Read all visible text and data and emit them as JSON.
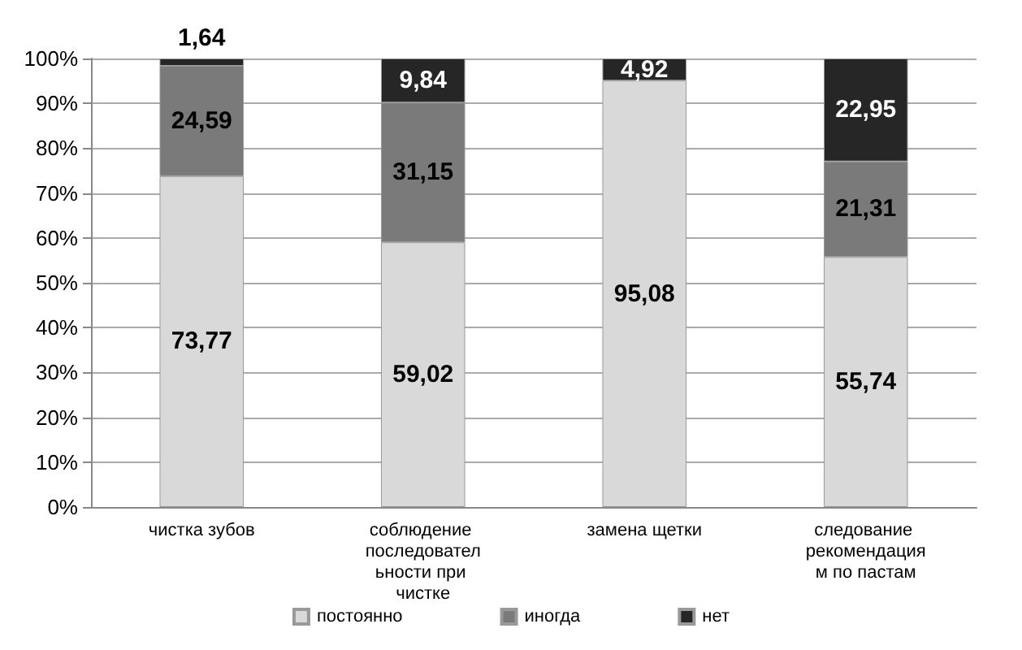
{
  "chart_data": {
    "type": "bar",
    "stacked": true,
    "categories": [
      "чистка зубов",
      "соблюдение последовательности при чистке",
      "замена щетки",
      "следование рекомендациям по пастам"
    ],
    "series": [
      {
        "name": "постоянно",
        "color": "#d9d9d9",
        "values": [
          73.77,
          59.02,
          95.08,
          55.74
        ],
        "value_labels": [
          "73,77",
          "59,02",
          "95,08",
          "55,74"
        ]
      },
      {
        "name": "иногда",
        "color": "#7a7a7a",
        "values": [
          24.59,
          31.15,
          null,
          21.31
        ],
        "value_labels": [
          "24,59",
          "31,15",
          null,
          "21,31"
        ]
      },
      {
        "name": "нет",
        "color": "#262626",
        "values": [
          1.64,
          9.84,
          4.92,
          22.95
        ],
        "value_labels": [
          "1,64",
          "9,84",
          "4,92",
          "22,95"
        ]
      }
    ],
    "ylim": [
      0,
      100
    ],
    "yticks": [
      {
        "value": 0,
        "label": "0%"
      },
      {
        "value": 10,
        "label": "10%"
      },
      {
        "value": 20,
        "label": "20%"
      },
      {
        "value": 30,
        "label": "30%"
      },
      {
        "value": 40,
        "label": "40%"
      },
      {
        "value": 50,
        "label": "50%"
      },
      {
        "value": 60,
        "label": "60%"
      },
      {
        "value": 70,
        "label": "70%"
      },
      {
        "value": 80,
        "label": "80%"
      },
      {
        "value": 90,
        "label": "90%"
      },
      {
        "value": 100,
        "label": "100%"
      }
    ],
    "grid": "y",
    "legend": "bottom"
  }
}
